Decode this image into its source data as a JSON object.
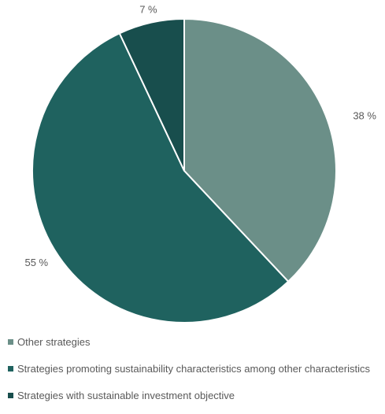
{
  "chart_data": {
    "type": "pie",
    "categories": [
      "Other strategies",
      "Strategies promoting sustainability characteristics among other characteristics",
      "Strategies with sustainable investment objective"
    ],
    "values": [
      38,
      55,
      7
    ],
    "labels": [
      "38 %",
      "55 %",
      "7 %"
    ],
    "colors": [
      "#6b8f88",
      "#1f625f",
      "#184e4d"
    ],
    "legend_position": "bottom-left"
  }
}
